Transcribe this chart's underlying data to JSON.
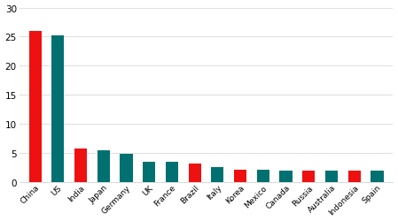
{
  "categories": [
    "China",
    "US",
    "India",
    "Japan",
    "Germany",
    "UK",
    "France",
    "Brazil",
    "Italy",
    "Korea",
    "Mexico",
    "Canada",
    "Russia",
    "Australia",
    "Indonesia",
    "Spain"
  ],
  "values": [
    26.0,
    25.2,
    5.8,
    5.5,
    4.9,
    3.5,
    3.4,
    3.1,
    2.5,
    2.1,
    2.1,
    2.0,
    1.95,
    1.9,
    1.9,
    1.9
  ],
  "colors": [
    "#ee1111",
    "#007070",
    "#ee1111",
    "#007070",
    "#007070",
    "#007070",
    "#007070",
    "#ee1111",
    "#007070",
    "#ee1111",
    "#007070",
    "#007070",
    "#ee1111",
    "#007070",
    "#ee1111",
    "#007070"
  ],
  "ylim": [
    0,
    30
  ],
  "yticks": [
    0,
    5,
    10,
    15,
    20,
    25,
    30
  ],
  "background_color": "#ffffff",
  "grid_color": "#e0e0e0",
  "bar_width": 0.55,
  "tick_fontsize": 7.5,
  "label_fontsize": 6.5
}
